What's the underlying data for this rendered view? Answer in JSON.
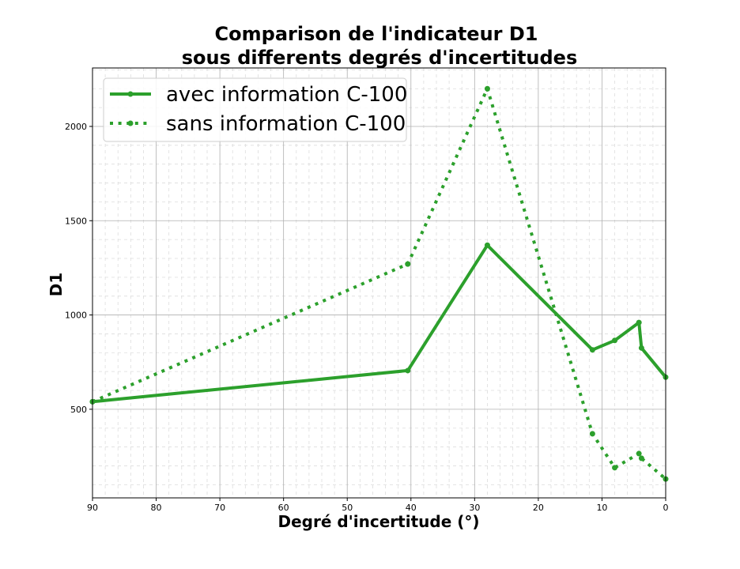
{
  "chart_data": {
    "type": "line",
    "title": [
      "Comparison de l'indicateur D1",
      "sous differents degrés d'incertitudes"
    ],
    "xlabel": "Degré d'incertitude (°)",
    "ylabel": "D1",
    "xlim": [
      90,
      0
    ],
    "x_inverted": true,
    "ylim": [
      30,
      2310
    ],
    "x_ticks": [
      90,
      80,
      70,
      60,
      50,
      40,
      30,
      20,
      10,
      0
    ],
    "y_ticks": [
      500,
      1000,
      1500,
      2000
    ],
    "grid": true,
    "minor_grid": true,
    "legend_position": "top-left",
    "series": [
      {
        "name": "avec information C-100",
        "style": "solid",
        "color": "#2ca02c",
        "x": [
          90,
          40.5,
          28,
          11.5,
          8,
          4.2,
          3.8,
          0
        ],
        "y": [
          540,
          705,
          1370,
          815,
          865,
          960,
          825,
          670
        ]
      },
      {
        "name": "sans information C-100",
        "style": "dotted",
        "color": "#2ca02c",
        "x": [
          90,
          40.5,
          28,
          11.5,
          8,
          4.2,
          3.8,
          0
        ],
        "y": [
          540,
          1270,
          2200,
          370,
          190,
          265,
          240,
          130
        ]
      }
    ]
  }
}
